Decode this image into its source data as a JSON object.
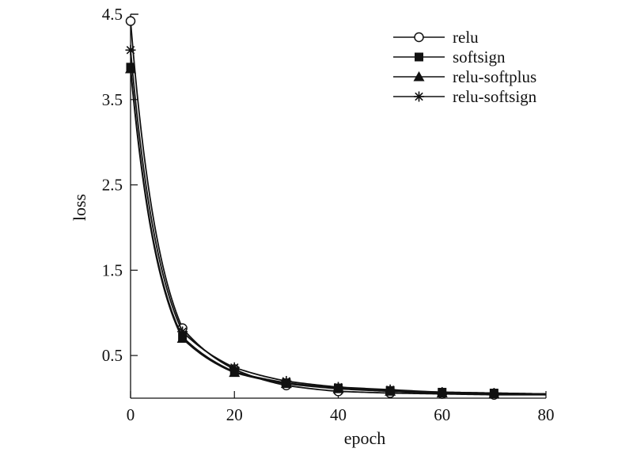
{
  "chart_data": {
    "type": "line",
    "title": "",
    "xlabel": "epoch",
    "ylabel": "loss",
    "xlim": [
      0,
      80
    ],
    "ylim": [
      0,
      4.5
    ],
    "xticks": [
      "0",
      "20",
      "40",
      "60",
      "80"
    ],
    "yticks": [
      "0.5",
      "1.5",
      "2.5",
      "3.5",
      "4.5"
    ],
    "grid": false,
    "legend_position": "top-right",
    "marker_x": [
      0,
      10,
      20,
      30,
      40,
      50,
      60,
      70
    ],
    "series": [
      {
        "name": "relu",
        "marker": "open-circle",
        "values": [
          4.42,
          0.82,
          0.34,
          0.15,
          0.08,
          0.06,
          0.05,
          0.04,
          0.04
        ]
      },
      {
        "name": "softsign",
        "marker": "filled-square",
        "values": [
          3.88,
          0.72,
          0.31,
          0.18,
          0.12,
          0.09,
          0.07,
          0.06,
          0.05
        ]
      },
      {
        "name": "relu-softplus",
        "marker": "filled-triangle",
        "values": [
          3.86,
          0.7,
          0.3,
          0.17,
          0.11,
          0.08,
          0.06,
          0.05,
          0.04
        ]
      },
      {
        "name": "relu-softsign",
        "marker": "asterisk",
        "values": [
          4.08,
          0.78,
          0.36,
          0.2,
          0.13,
          0.1,
          0.07,
          0.06,
          0.05
        ]
      }
    ],
    "x": [
      0,
      10,
      20,
      30,
      40,
      50,
      60,
      70,
      80
    ]
  }
}
